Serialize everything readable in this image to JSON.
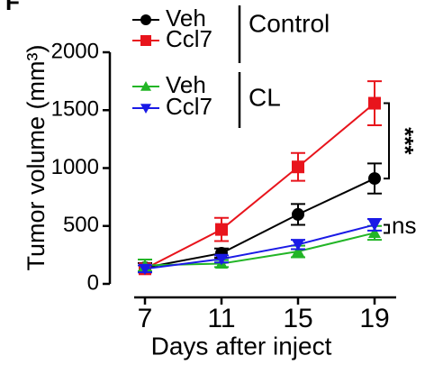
{
  "panel_label": "F",
  "chart_data": {
    "type": "line",
    "y_label": "Tumor volume (mm³)",
    "x_label": "Days after inject",
    "categories": [
      "7",
      "11",
      "15",
      "19"
    ],
    "ylim": [
      0,
      2000
    ],
    "yticks": [
      0,
      500,
      1000,
      1500,
      2000
    ],
    "legend_groups": [
      "Control",
      "CL"
    ],
    "series": [
      {
        "name": "Veh",
        "color": "#000000",
        "marker": "circle",
        "values": [
          140,
          265,
          600,
          910
        ],
        "errors": [
          40,
          40,
          90,
          130
        ]
      },
      {
        "name": "Ccl7",
        "color": "#e8141c",
        "marker": "square",
        "values": [
          130,
          470,
          1010,
          1560
        ],
        "errors": [
          30,
          100,
          120,
          190
        ]
      },
      {
        "name": "Veh",
        "color": "#22b526",
        "marker": "triangle-up",
        "values": [
          160,
          175,
          280,
          440
        ],
        "errors": [
          50,
          30,
          50,
          60
        ]
      },
      {
        "name": "Ccl7",
        "color": "#1a1ae6",
        "marker": "triangle-down",
        "values": [
          130,
          215,
          340,
          510
        ],
        "errors": [
          30,
          30,
          40,
          50
        ]
      }
    ],
    "annotations": [
      "***",
      "ns"
    ]
  }
}
